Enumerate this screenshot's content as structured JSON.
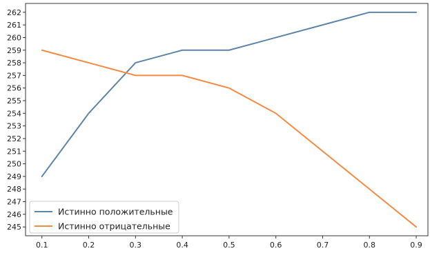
{
  "chart_data": {
    "type": "line",
    "x": [
      0.1,
      0.2,
      0.3,
      0.4,
      0.5,
      0.6,
      0.7,
      0.8,
      0.9
    ],
    "xticks": [
      "0.1",
      "0.2",
      "0.3",
      "0.4",
      "0.5",
      "0.6",
      "0.7",
      "0.8",
      "0.9"
    ],
    "yticks": [
      "245",
      "246",
      "247",
      "248",
      "249",
      "250",
      "251",
      "252",
      "253",
      "254",
      "255",
      "256",
      "257",
      "258",
      "259",
      "260",
      "261",
      "262"
    ],
    "xlim": [
      0.065,
      0.925
    ],
    "ylim": [
      244.3,
      262.7
    ],
    "grid": false,
    "legend_position": "lower-left",
    "series": [
      {
        "name": "Истинно положительные",
        "color": "#5b84a8",
        "values": [
          249,
          254,
          258,
          259,
          259,
          260,
          261,
          262,
          262
        ]
      },
      {
        "name": "Истинно отрицательные",
        "color": "#f58a45",
        "values": [
          259,
          258,
          257,
          257,
          256,
          254,
          251,
          248,
          245
        ]
      }
    ],
    "title": "",
    "xlabel": "",
    "ylabel": ""
  }
}
